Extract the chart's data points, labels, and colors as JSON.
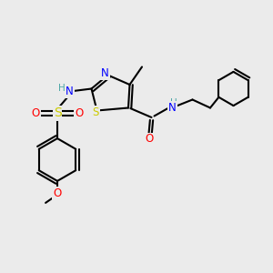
{
  "background_color": "#ebebeb",
  "atom_colors": {
    "C": "#000000",
    "H": "#4da6a6",
    "N": "#0000ff",
    "O": "#ff0000",
    "S_thz": "#cccc00",
    "S_sulf": "#cccc00"
  },
  "bond_color": "#000000",
  "line_width": 1.5,
  "figsize": [
    3.0,
    3.0
  ],
  "dpi": 100,
  "xlim": [
    0,
    10
  ],
  "ylim": [
    0,
    10
  ]
}
